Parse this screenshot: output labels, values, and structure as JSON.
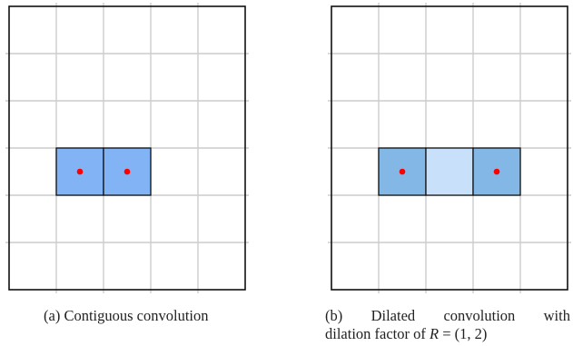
{
  "panels": [
    {
      "id": "a",
      "grid": {
        "cols": 5,
        "rows": 6
      },
      "highlighted_cells": [
        {
          "row": 3,
          "col": 1,
          "fill": "#82b4f5",
          "dot": true
        },
        {
          "row": 3,
          "col": 2,
          "fill": "#82b4f5",
          "dot": true
        }
      ],
      "caption": {
        "prefix": "(a)",
        "text": "Contiguous convolution"
      }
    },
    {
      "id": "b",
      "grid": {
        "cols": 5,
        "rows": 6
      },
      "highlighted_cells": [
        {
          "row": 3,
          "col": 1,
          "fill": "#83b8e6",
          "dot": true
        },
        {
          "row": 3,
          "col": 2,
          "fill": "#c9e0fb",
          "dot": false
        },
        {
          "row": 3,
          "col": 3,
          "fill": "#83b8e6",
          "dot": true
        }
      ],
      "caption": {
        "prefix": "(b)",
        "word1": "Dilated",
        "word2": "convolution",
        "word3": "with",
        "line2_text": "dilation factor of",
        "math_var": "R",
        "math_rest": "= (1, 2)"
      }
    }
  ],
  "colors": {
    "grid_line": "#cccccc",
    "border": "#111111",
    "dot": "#ff0000"
  }
}
